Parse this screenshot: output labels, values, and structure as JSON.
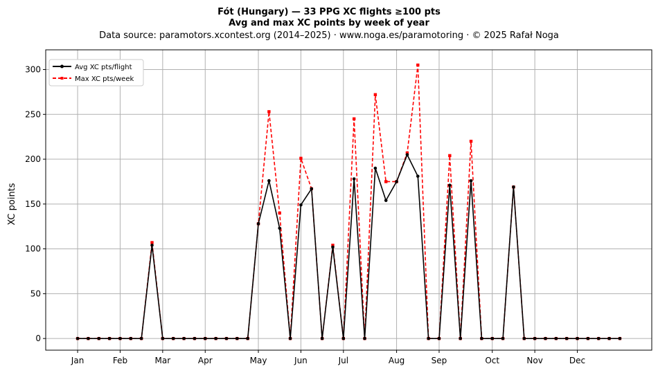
{
  "chart_data": {
    "type": "line",
    "title": "Fót (Hungary)  —  33 PPG XC flights ≥100 pts",
    "subtitle": "Avg and max XC points by week of year",
    "source_note": "Data source: paramotors.xcontest.org (2014–2025)  ·  www.noga.es/paramotoring  ·  © 2025 Rafał Noga",
    "xlabel": "",
    "ylabel": "XC points",
    "ylim": [
      -13,
      322
    ],
    "xlim": [
      -3,
      54
    ],
    "grid": true,
    "legend_position": "top-left",
    "x": [
      0,
      1,
      2,
      3,
      4,
      5,
      6,
      7,
      8,
      9,
      10,
      11,
      12,
      13,
      14,
      15,
      16,
      17,
      18,
      19,
      20,
      21,
      22,
      23,
      24,
      25,
      26,
      27,
      28,
      29,
      30,
      31,
      32,
      33,
      34,
      35,
      36,
      37,
      38,
      39,
      40,
      41,
      42,
      43,
      44,
      45,
      46,
      47,
      48,
      49,
      50,
      51
    ],
    "x_ticks": [
      {
        "x": 0,
        "label": "Jan"
      },
      {
        "x": 4,
        "label": "Feb"
      },
      {
        "x": 8,
        "label": "Mar"
      },
      {
        "x": 12,
        "label": "Apr"
      },
      {
        "x": 17,
        "label": "May"
      },
      {
        "x": 21,
        "label": "Jun"
      },
      {
        "x": 25,
        "label": "Jul"
      },
      {
        "x": 30,
        "label": "Aug"
      },
      {
        "x": 34,
        "label": "Sep"
      },
      {
        "x": 39,
        "label": "Oct"
      },
      {
        "x": 43,
        "label": "Nov"
      },
      {
        "x": 47,
        "label": "Dec"
      }
    ],
    "y_ticks": [
      0,
      50,
      100,
      150,
      200,
      250,
      300
    ],
    "series": [
      {
        "name": "Avg XC pts/flight",
        "color": "#000000",
        "style": "solid",
        "marker": "circle",
        "values": [
          0,
          0,
          0,
          0,
          0,
          0,
          0,
          104,
          0,
          0,
          0,
          0,
          0,
          0,
          0,
          0,
          0,
          128,
          176,
          123,
          0,
          149,
          167,
          0,
          102,
          0,
          178,
          0,
          190,
          154,
          175,
          205,
          181,
          0,
          0,
          171,
          0,
          176,
          0,
          0,
          0,
          169,
          0,
          0,
          0,
          0,
          0,
          0,
          0,
          0,
          0,
          0
        ]
      },
      {
        "name": "Max XC pts/week",
        "color": "#ff0000",
        "style": "dashed",
        "marker": "square",
        "values": [
          0,
          0,
          0,
          0,
          0,
          0,
          0,
          107,
          0,
          0,
          0,
          0,
          0,
          0,
          0,
          0,
          0,
          128,
          253,
          140,
          0,
          201,
          167,
          0,
          104,
          0,
          245,
          0,
          272,
          175,
          175,
          207,
          305,
          0,
          0,
          204,
          0,
          220,
          0,
          0,
          0,
          169,
          0,
          0,
          0,
          0,
          0,
          0,
          0,
          0,
          0,
          0
        ]
      }
    ]
  }
}
